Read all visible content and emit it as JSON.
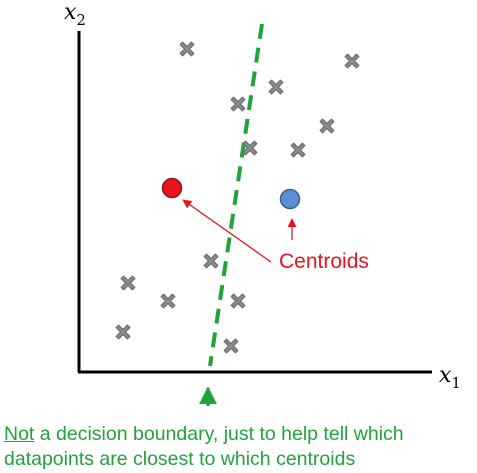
{
  "axes": {
    "x_label": "x",
    "x_sub": "1",
    "y_label": "x",
    "y_sub": "2"
  },
  "centroids_label": "Centroids",
  "caption": {
    "emphasis": "Not",
    "line1_rest": " a decision boundary, just to help tell which",
    "line2": "datapoints are closest to which centroids"
  },
  "colors": {
    "axis": "#000000",
    "datapoint_fill": "#8c8c8c",
    "datapoint_stroke": "#6e6e6e",
    "centroid_red": "#e8141e",
    "centroid_blue": "#5b8fd6",
    "boundary": "#22a33a",
    "annotation_red": "#e8141e",
    "annotation_green": "#22a33a"
  },
  "icons": {
    "datapoint": "x-cross-icon",
    "centroid": "circle-dot-icon"
  }
}
